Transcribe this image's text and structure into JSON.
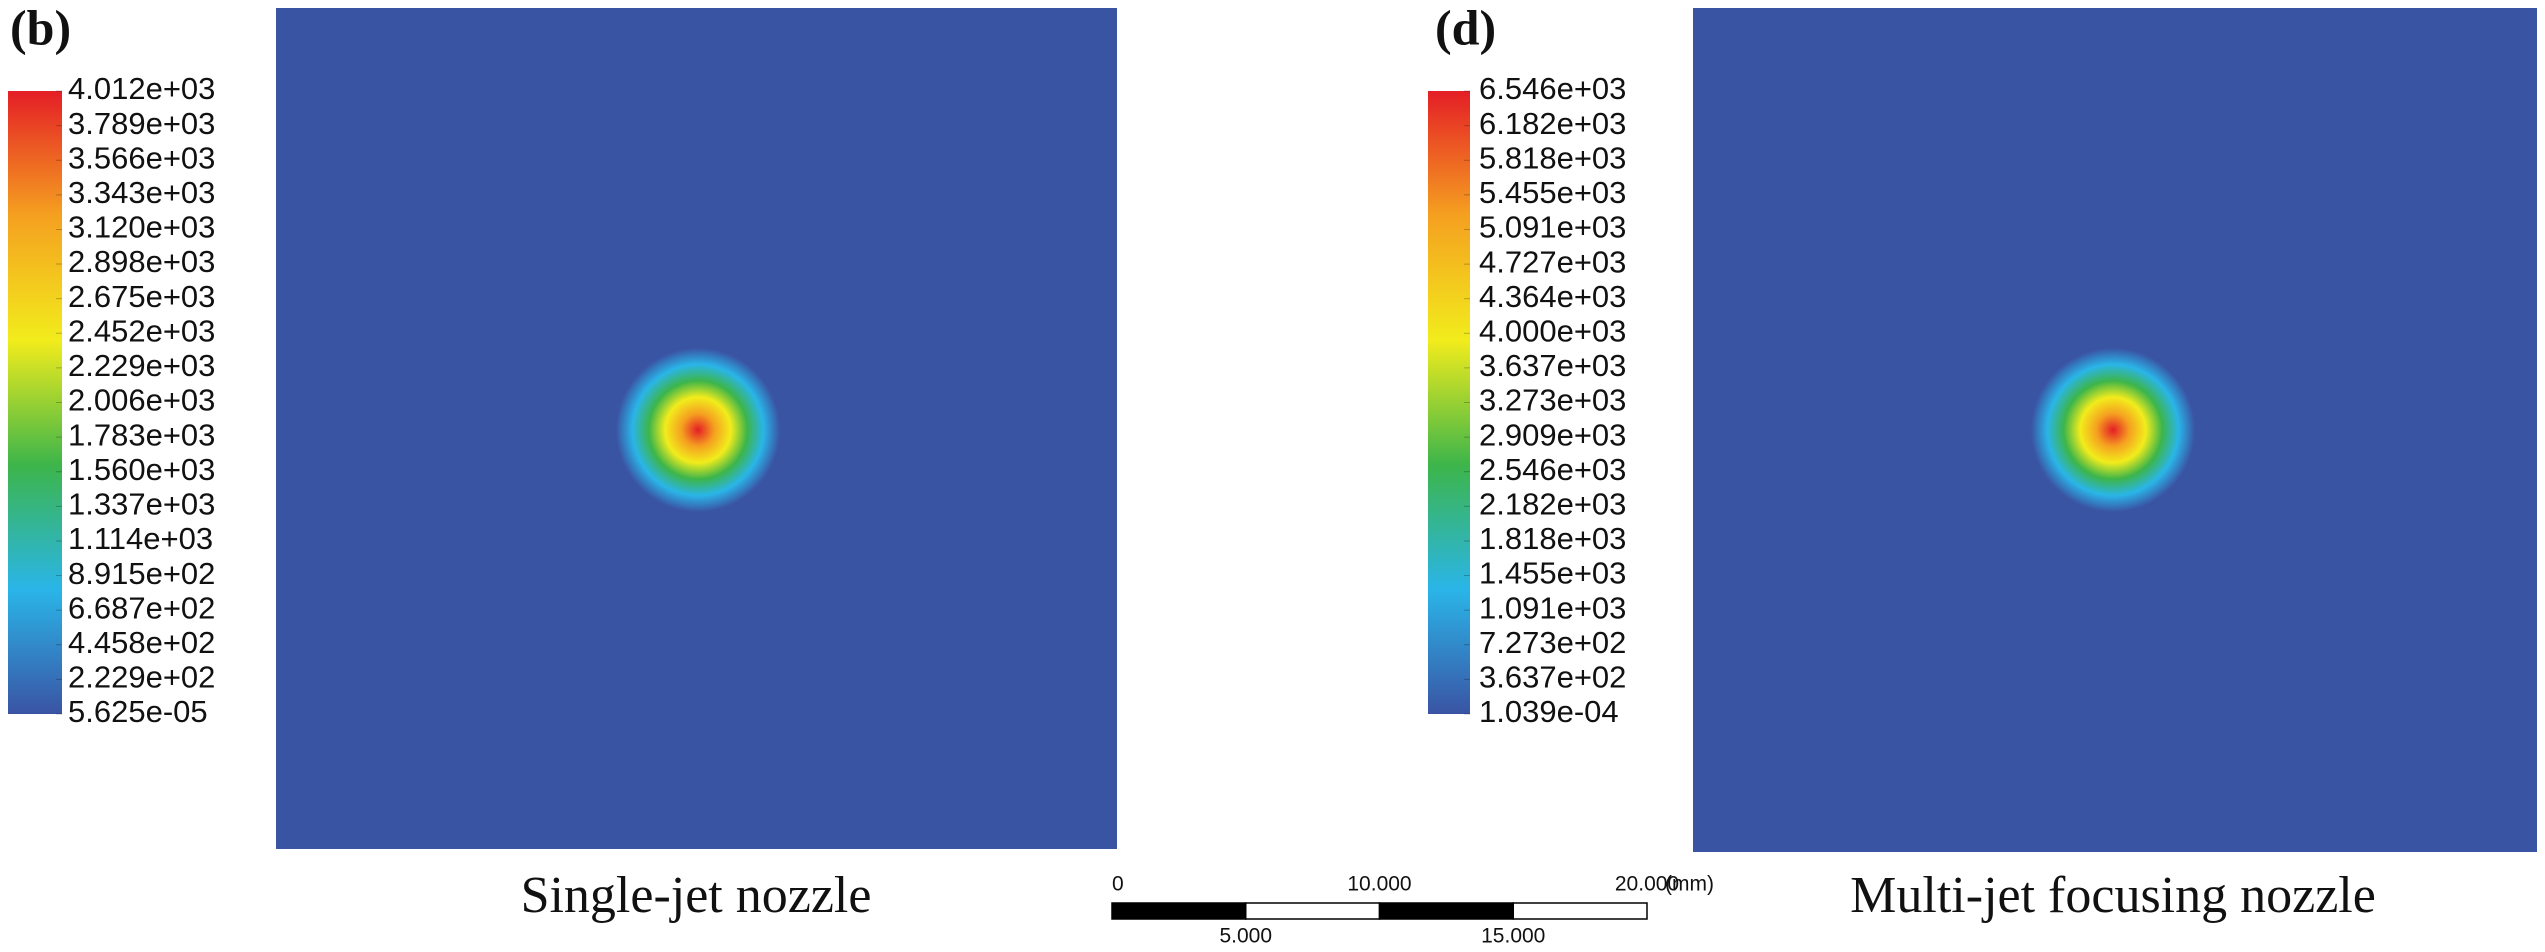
{
  "chart_data": [
    {
      "type": "contour",
      "title": "(b)",
      "caption": "Single-jet nozzle",
      "colormap": [
        "#3a54a4",
        "#2ab5e8",
        "#3db54a",
        "#f2ec1c",
        "#f5a020",
        "#e41e26"
      ],
      "clim": [
        5.625e-05,
        4012
      ],
      "cticks": [
        {
          "value": 4012,
          "label": "4.012e+03"
        },
        {
          "value": 3789,
          "label": "3.789e+03"
        },
        {
          "value": 3566,
          "label": "3.566e+03"
        },
        {
          "value": 3343,
          "label": "3.343e+03"
        },
        {
          "value": 3120,
          "label": "3.120e+03"
        },
        {
          "value": 2898,
          "label": "2.898e+03"
        },
        {
          "value": 2675,
          "label": "2.675e+03"
        },
        {
          "value": 2452,
          "label": "2.452e+03"
        },
        {
          "value": 2229,
          "label": "2.229e+03"
        },
        {
          "value": 2006,
          "label": "2.006e+03"
        },
        {
          "value": 1783,
          "label": "1.783e+03"
        },
        {
          "value": 1560,
          "label": "1.560e+03"
        },
        {
          "value": 1337,
          "label": "1.337e+03"
        },
        {
          "value": 1114,
          "label": "1.114e+03"
        },
        {
          "value": 891.5,
          "label": "8.915e+02"
        },
        {
          "value": 668.7,
          "label": "6.687e+02"
        },
        {
          "value": 445.8,
          "label": "4.458e+02"
        },
        {
          "value": 222.9,
          "label": "2.229e+02"
        },
        {
          "value": 5.625e-05,
          "label": "5.625e-05"
        }
      ]
    },
    {
      "type": "contour",
      "title": "(d)",
      "caption": "Multi-jet focusing nozzle",
      "colormap": [
        "#3a54a4",
        "#2ab5e8",
        "#3db54a",
        "#f2ec1c",
        "#f5a020",
        "#e41e26"
      ],
      "clim": [
        0.0001039,
        6546
      ],
      "cticks": [
        {
          "value": 6546,
          "label": "6.546e+03"
        },
        {
          "value": 6182,
          "label": "6.182e+03"
        },
        {
          "value": 5818,
          "label": "5.818e+03"
        },
        {
          "value": 5455,
          "label": "5.455e+03"
        },
        {
          "value": 5091,
          "label": "5.091e+03"
        },
        {
          "value": 4727,
          "label": "4.727e+03"
        },
        {
          "value": 4364,
          "label": "4.364e+03"
        },
        {
          "value": 4000,
          "label": "4.000e+03"
        },
        {
          "value": 3637,
          "label": "3.637e+03"
        },
        {
          "value": 3273,
          "label": "3.273e+03"
        },
        {
          "value": 2909,
          "label": "2.909e+03"
        },
        {
          "value": 2546,
          "label": "2.546e+03"
        },
        {
          "value": 2182,
          "label": "2.182e+03"
        },
        {
          "value": 1818,
          "label": "1.818e+03"
        },
        {
          "value": 1455,
          "label": "1.455e+03"
        },
        {
          "value": 1091,
          "label": "1.091e+03"
        },
        {
          "value": 727.3,
          "label": "7.273e+02"
        },
        {
          "value": 363.7,
          "label": "3.637e+02"
        },
        {
          "value": 0.0001039,
          "label": "1.039e-04"
        }
      ]
    }
  ],
  "scale_bar": {
    "unit": "(mm)",
    "xlim": [
      0,
      20
    ],
    "ticks": [
      0,
      {
        "value": 5,
        "label": "5.000"
      },
      {
        "value": 10,
        "label": "10.000"
      },
      {
        "value": 15,
        "label": "15.000"
      },
      {
        "value": 20,
        "label": "20.000"
      }
    ]
  }
}
